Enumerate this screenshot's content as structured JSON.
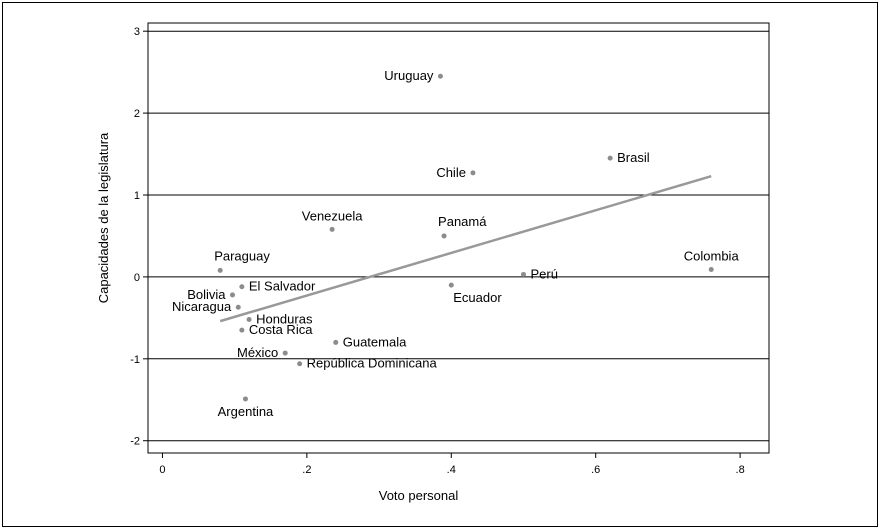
{
  "chart_data": {
    "type": "scatter",
    "xlabel": "Voto personal",
    "ylabel": "Capacidades de la legislatura",
    "xlim": [
      -0.02,
      0.84
    ],
    "ylim": [
      -2.15,
      3.1
    ],
    "x_ticks": [
      0,
      0.2,
      0.4,
      0.6,
      0.8
    ],
    "x_tick_labels": [
      "0",
      ".2",
      ".4",
      ".6",
      ".8"
    ],
    "y_ticks": [
      -2,
      -1,
      0,
      1,
      2,
      3
    ],
    "y_tick_labels": [
      "-2",
      "-1",
      "0",
      "1",
      "2",
      "3"
    ],
    "grid": "horizontal",
    "points": [
      {
        "label": "Uruguay",
        "x": 0.385,
        "y": 2.45,
        "anchor": "left"
      },
      {
        "label": "Brasil",
        "x": 0.62,
        "y": 1.45,
        "anchor": "right"
      },
      {
        "label": "Chile",
        "x": 0.43,
        "y": 1.27,
        "anchor": "left"
      },
      {
        "label": "Venezuela",
        "x": 0.235,
        "y": 0.58,
        "anchor": "above"
      },
      {
        "label": "Panamá",
        "x": 0.39,
        "y": 0.5,
        "anchor": "above-right"
      },
      {
        "label": "Paraguay",
        "x": 0.08,
        "y": 0.08,
        "anchor": "above-right"
      },
      {
        "label": "Colombia",
        "x": 0.76,
        "y": 0.09,
        "anchor": "above"
      },
      {
        "label": "Perú",
        "x": 0.5,
        "y": 0.03,
        "anchor": "right"
      },
      {
        "label": "El Salvador",
        "x": 0.11,
        "y": -0.12,
        "anchor": "right"
      },
      {
        "label": "Ecuador",
        "x": 0.4,
        "y": -0.1,
        "anchor": "below-right"
      },
      {
        "label": "Bolivia",
        "x": 0.097,
        "y": -0.22,
        "anchor": "left"
      },
      {
        "label": "Nicaragua",
        "x": 0.105,
        "y": -0.37,
        "anchor": "left"
      },
      {
        "label": "Honduras",
        "x": 0.12,
        "y": -0.52,
        "anchor": "right"
      },
      {
        "label": "Costa Rica",
        "x": 0.11,
        "y": -0.65,
        "anchor": "right"
      },
      {
        "label": "Guatemala",
        "x": 0.24,
        "y": -0.8,
        "anchor": "right"
      },
      {
        "label": "México",
        "x": 0.17,
        "y": -0.93,
        "anchor": "left"
      },
      {
        "label": "República Dominicana",
        "x": 0.19,
        "y": -1.06,
        "anchor": "right"
      },
      {
        "label": "Argentina",
        "x": 0.115,
        "y": -1.49,
        "anchor": "below"
      }
    ],
    "fit_line": {
      "x": [
        0.08,
        0.76
      ],
      "y": [
        -0.54,
        1.23
      ]
    },
    "colors": {
      "marker": "#8c8c8c",
      "fit_line": "#999999",
      "grid": "#000000"
    }
  }
}
